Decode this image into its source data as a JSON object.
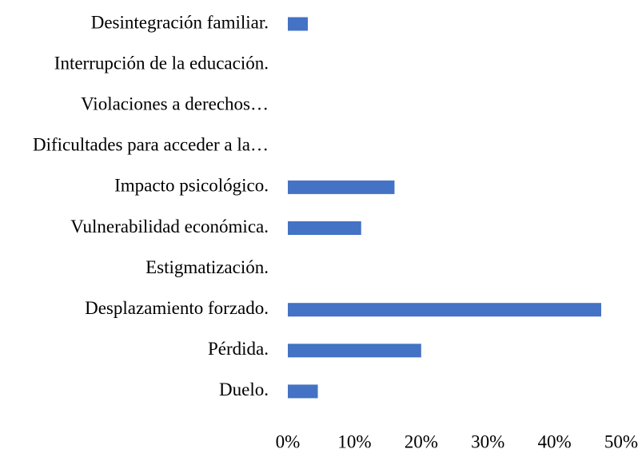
{
  "chart_data": {
    "type": "bar",
    "orientation": "horizontal",
    "categories": [
      "Desintegración familiar.",
      "Interrupción de la educación.",
      "Violaciones a derechos…",
      "Dificultades para acceder a la…",
      "Impacto psicológico.",
      "Vulnerabilidad económica.",
      "Estigmatización.",
      "Desplazamiento forzado.",
      "Pérdida.",
      "Duelo."
    ],
    "values": [
      3,
      0,
      0,
      0,
      16,
      11,
      0,
      47,
      20,
      4.5
    ],
    "color": "#4472c4",
    "xlim": [
      0,
      50
    ],
    "xticks": [
      {
        "value": 0,
        "label": "0%"
      },
      {
        "value": 10,
        "label": "10%"
      },
      {
        "value": 20,
        "label": "20%"
      },
      {
        "value": 30,
        "label": "30%"
      },
      {
        "value": 40,
        "label": "40%"
      },
      {
        "value": 50,
        "label": "50%"
      }
    ],
    "grid": false
  }
}
